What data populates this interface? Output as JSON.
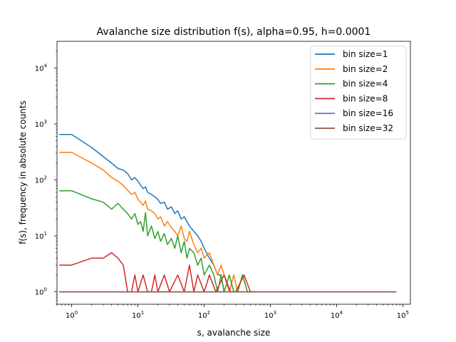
{
  "chart_data": {
    "type": "line",
    "title": "Avalanche size distribution f(s), alpha=0.95, h=0.0001",
    "xlabel": "s, avalanche size",
    "ylabel": "f(s), frequency in absolute counts",
    "xscale": "log",
    "yscale": "log",
    "xlim": [
      0.6,
      130000
    ],
    "ylim": [
      0.6,
      30000
    ],
    "x_ticks": [
      {
        "value": 1,
        "base": "10",
        "exp": "0"
      },
      {
        "value": 10,
        "base": "10",
        "exp": "1"
      },
      {
        "value": 100,
        "base": "10",
        "exp": "2"
      },
      {
        "value": 1000,
        "base": "10",
        "exp": "3"
      },
      {
        "value": 10000,
        "base": "10",
        "exp": "4"
      },
      {
        "value": 100000,
        "base": "10",
        "exp": "5"
      }
    ],
    "y_ticks": [
      {
        "value": 1,
        "base": "10",
        "exp": "0"
      },
      {
        "value": 10,
        "base": "10",
        "exp": "1"
      },
      {
        "value": 100,
        "base": "10",
        "exp": "2"
      },
      {
        "value": 1000,
        "base": "10",
        "exp": "3"
      },
      {
        "value": 10000,
        "base": "10",
        "exp": "4"
      }
    ],
    "grid": false,
    "legend_position": "top-right",
    "series": [
      {
        "name": "bin size=1",
        "color": "#1f77b4",
        "x": [
          0.65,
          1,
          2,
          3,
          4,
          5,
          6,
          7,
          8,
          9,
          10,
          11,
          12,
          13,
          14,
          16,
          18,
          20,
          22,
          25,
          28,
          32,
          36,
          40,
          45,
          50,
          55,
          60,
          70,
          80,
          90,
          100,
          120,
          140,
          160,
          180,
          200
        ],
        "y": [
          650,
          650,
          380,
          260,
          200,
          160,
          150,
          130,
          100,
          110,
          95,
          80,
          70,
          75,
          60,
          55,
          50,
          45,
          38,
          40,
          30,
          33,
          25,
          28,
          20,
          22,
          18,
          15,
          12,
          10,
          8,
          6,
          4,
          3,
          2,
          2,
          1
        ]
      },
      {
        "name": "bin size=2",
        "color": "#ff7f0e",
        "x": [
          0.65,
          1,
          2,
          3,
          4,
          5,
          6,
          7,
          8,
          9,
          10,
          11,
          12,
          13,
          14,
          16,
          18,
          20,
          22,
          25,
          28,
          32,
          36,
          40,
          45,
          50,
          55,
          60,
          70,
          80,
          90,
          100,
          120,
          140,
          160,
          180,
          200,
          240,
          280,
          320,
          380,
          450,
          600
        ],
        "y": [
          310,
          310,
          200,
          150,
          110,
          95,
          80,
          65,
          55,
          60,
          45,
          40,
          35,
          42,
          30,
          28,
          25,
          20,
          22,
          15,
          18,
          14,
          12,
          10,
          15,
          9,
          8,
          12,
          7,
          5,
          6,
          4,
          5,
          3,
          2,
          3,
          2,
          1,
          2,
          1,
          2,
          1,
          1
        ]
      },
      {
        "name": "bin size=4",
        "color": "#2ca02c",
        "x": [
          0.65,
          1,
          2,
          3,
          4,
          5,
          6,
          7,
          8,
          9,
          10,
          11,
          12,
          13,
          14,
          16,
          18,
          20,
          22,
          25,
          28,
          32,
          36,
          40,
          45,
          50,
          55,
          60,
          70,
          80,
          90,
          100,
          120,
          140,
          160,
          180,
          200,
          240,
          280,
          320,
          380,
          450,
          600
        ],
        "y": [
          64,
          64,
          46,
          40,
          30,
          38,
          30,
          25,
          20,
          25,
          16,
          18,
          12,
          26,
          10,
          15,
          9,
          12,
          8,
          11,
          7,
          9,
          6,
          10,
          5,
          8,
          4,
          6,
          5,
          3,
          4,
          2,
          3,
          2,
          1,
          2,
          1,
          2,
          1,
          1,
          2,
          1,
          1
        ]
      },
      {
        "name": "bin size=8",
        "color": "#d62728",
        "x": [
          0.65,
          1,
          2,
          3,
          4,
          5,
          6,
          7,
          8,
          9,
          10,
          12,
          14,
          16,
          18,
          20,
          25,
          30,
          40,
          50,
          60,
          70,
          80,
          100,
          120,
          150,
          200,
          250,
          300,
          400,
          500,
          600
        ],
        "y": [
          3,
          3,
          4,
          4,
          5,
          4,
          3,
          1,
          1,
          2,
          1,
          2,
          1,
          1,
          2,
          1,
          2,
          1,
          2,
          1,
          3,
          1,
          2,
          1,
          2,
          1,
          2,
          1,
          1,
          2,
          1,
          1
        ]
      },
      {
        "name": "bin size=16",
        "color": "#9467bd",
        "x": [
          0.65,
          1,
          10,
          100,
          1000,
          10000,
          80000
        ],
        "y": [
          1,
          1,
          1,
          1,
          1,
          1,
          1
        ]
      },
      {
        "name": "bin size=32",
        "color": "#8c564b",
        "x": [
          0.65,
          1,
          10,
          100,
          1000,
          10000,
          80000
        ],
        "y": [
          1,
          1,
          1,
          1,
          1,
          1,
          1
        ]
      }
    ]
  }
}
